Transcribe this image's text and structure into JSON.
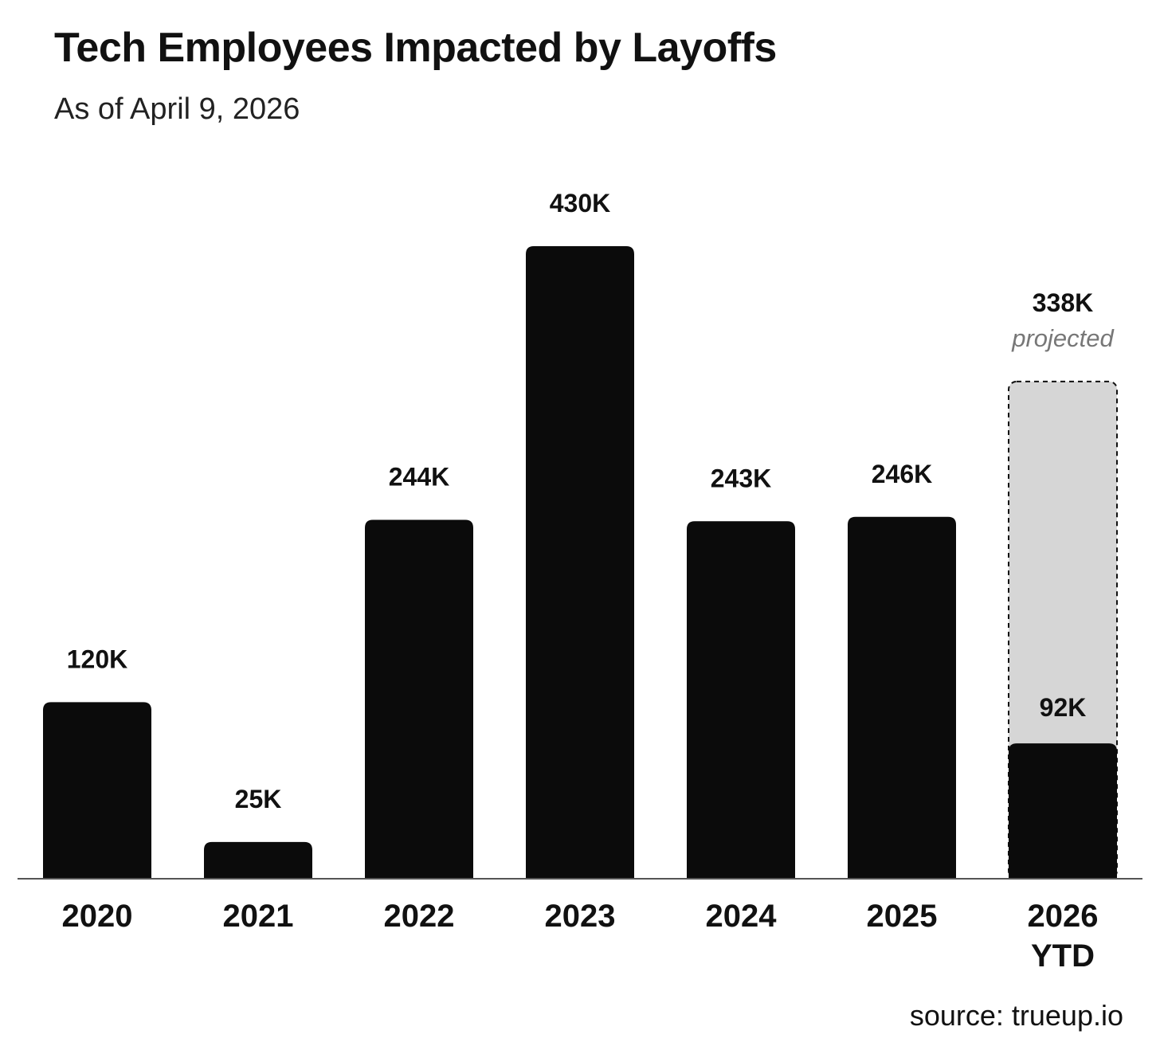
{
  "title": "Tech Employees Impacted by Layoffs",
  "subtitle": "As of April 9, 2026",
  "source": "source: trueup.io",
  "colors": {
    "bar": "#0b0b0b",
    "projected_fill": "#d6d6d6",
    "projected_border": "#111111",
    "projected_text": "#777777",
    "axis": "#555555"
  },
  "chart_data": {
    "type": "bar",
    "categories": [
      "2020",
      "2021",
      "2022",
      "2023",
      "2024",
      "2025",
      "2026\nYTD"
    ],
    "values": [
      120,
      25,
      244,
      430,
      243,
      246,
      92
    ],
    "value_labels": [
      "120K",
      "25K",
      "244K",
      "430K",
      "243K",
      "246K",
      "92K"
    ],
    "units": "K",
    "ylim": [
      0,
      430
    ],
    "grid": false,
    "projected": {
      "category": "2026\nYTD",
      "value": 338,
      "label": "338K",
      "note": "projected"
    }
  }
}
